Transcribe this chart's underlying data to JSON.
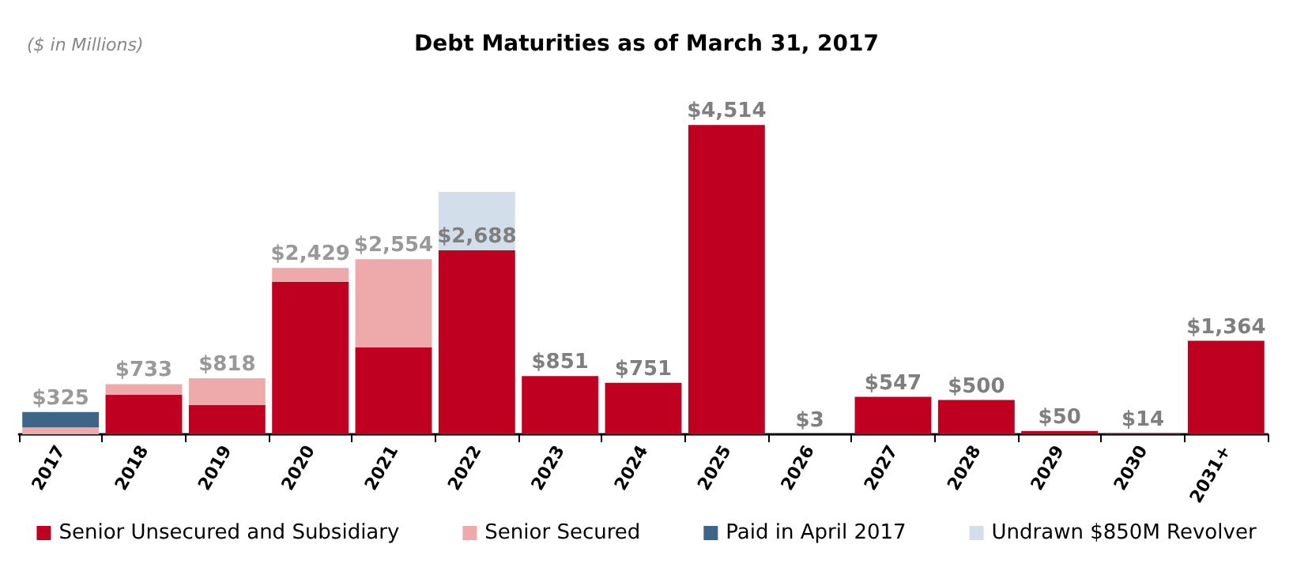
{
  "chart_data": {
    "type": "bar",
    "title": "Debt Maturities as of March 31, 2017",
    "subtitle": "($ in Millions)",
    "categories": [
      "2017",
      "2018",
      "2019",
      "2020",
      "2021",
      "2022",
      "2023",
      "2024",
      "2025",
      "2026",
      "2027",
      "2028",
      "2029",
      "2030",
      "2031+"
    ],
    "stacked": true,
    "series": [
      {
        "name": "Senior Unsecured and Subsidiary",
        "color": "#c00020",
        "values": [
          0,
          577,
          425,
          2225,
          1268,
          2688,
          851,
          751,
          4514,
          3,
          547,
          500,
          50,
          14,
          1364
        ],
        "value_labels": [
          null,
          null,
          null,
          null,
          null,
          "$2,688",
          "$851",
          "$751",
          "$4,514",
          "$3",
          "$547",
          "$500",
          "$50",
          "$14",
          "$1,364"
        ]
      },
      {
        "name": "Senior Secured",
        "color": "#eeaaab",
        "values": [
          100,
          156,
          393,
          204,
          1286,
          0,
          0,
          0,
          0,
          0,
          0,
          0,
          0,
          0,
          0
        ]
      },
      {
        "name": "Paid in April 2017",
        "color": "#3d6587",
        "values": [
          225,
          0,
          0,
          0,
          0,
          0,
          0,
          0,
          0,
          0,
          0,
          0,
          0,
          0,
          0
        ]
      },
      {
        "name": "Undrawn $850M Revolver",
        "color": "#d2dfea",
        "values": [
          0,
          0,
          0,
          0,
          0,
          850,
          0,
          0,
          0,
          0,
          0,
          0,
          0,
          0,
          0
        ]
      }
    ],
    "totals": [
      "$325",
      "$733",
      "$818",
      "$2,429",
      "$2,554",
      null,
      null,
      null,
      null,
      null,
      null,
      null,
      null,
      null,
      null
    ],
    "legend": "bottom",
    "grid": false
  }
}
